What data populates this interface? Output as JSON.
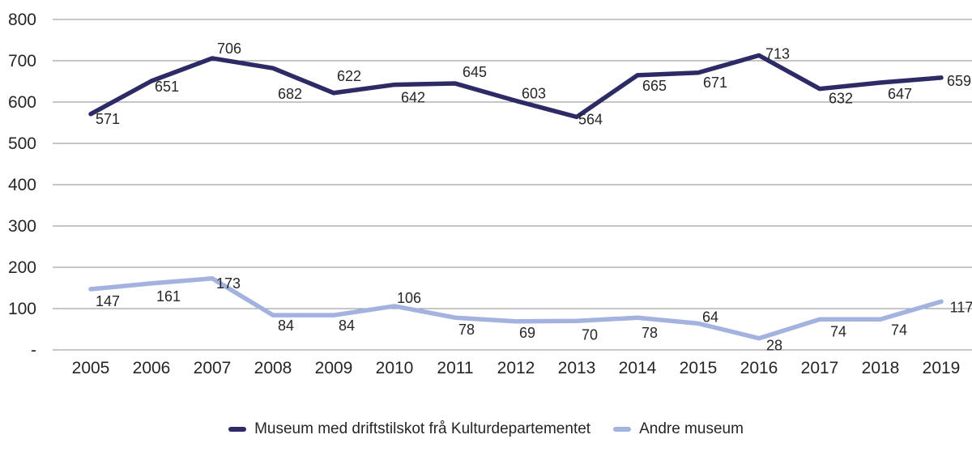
{
  "chart_data": {
    "type": "line",
    "title": "",
    "xlabel": "",
    "ylabel": "",
    "x": [
      "2005",
      "2006",
      "2007",
      "2008",
      "2009",
      "2010",
      "2011",
      "2012",
      "2013",
      "2014",
      "2015",
      "2016",
      "2017",
      "2018",
      "2019"
    ],
    "series": [
      {
        "name": "Museum med driftstilskot frå Kulturdepartementet",
        "color": "#2d2b66",
        "values": [
          571,
          651,
          706,
          682,
          622,
          642,
          645,
          603,
          564,
          665,
          671,
          713,
          632,
          647,
          659
        ],
        "label_offsets": [
          [
            21,
            12
          ],
          [
            19,
            13
          ],
          [
            21,
            -6
          ],
          [
            21,
            38
          ],
          [
            19,
            -15
          ],
          [
            23,
            22
          ],
          [
            24,
            -8
          ],
          [
            22,
            -3
          ],
          [
            17,
            9
          ],
          [
            21,
            19
          ],
          [
            21,
            18
          ],
          [
            23,
            4
          ],
          [
            26,
            18
          ],
          [
            24,
            20
          ],
          [
            22,
            10
          ]
        ]
      },
      {
        "name": "Andre museum",
        "color": "#a3b2de",
        "values": [
          147,
          161,
          173,
          84,
          84,
          106,
          78,
          69,
          70,
          78,
          64,
          28,
          74,
          74,
          117
        ],
        "label_offsets": [
          [
            21,
            21
          ],
          [
            21,
            22
          ],
          [
            20,
            12
          ],
          [
            16,
            19
          ],
          [
            16,
            19
          ],
          [
            18,
            -4
          ],
          [
            14,
            21
          ],
          [
            14,
            20
          ],
          [
            16,
            23
          ],
          [
            15,
            25
          ],
          [
            15,
            -2
          ],
          [
            19,
            15
          ],
          [
            23,
            21
          ],
          [
            23,
            19
          ],
          [
            25,
            13
          ]
        ]
      }
    ],
    "ylim": [
      0,
      800
    ],
    "yticks": [
      0,
      100,
      200,
      300,
      400,
      500,
      600,
      700,
      800
    ],
    "ytick_labels": [
      "-",
      "100",
      "200",
      "300",
      "400",
      "500",
      "600",
      "700",
      "800"
    ],
    "grid": true,
    "legend_position": "bottom-center",
    "colors": {
      "grid": "#8e8e8e",
      "text": "#262626"
    }
  }
}
